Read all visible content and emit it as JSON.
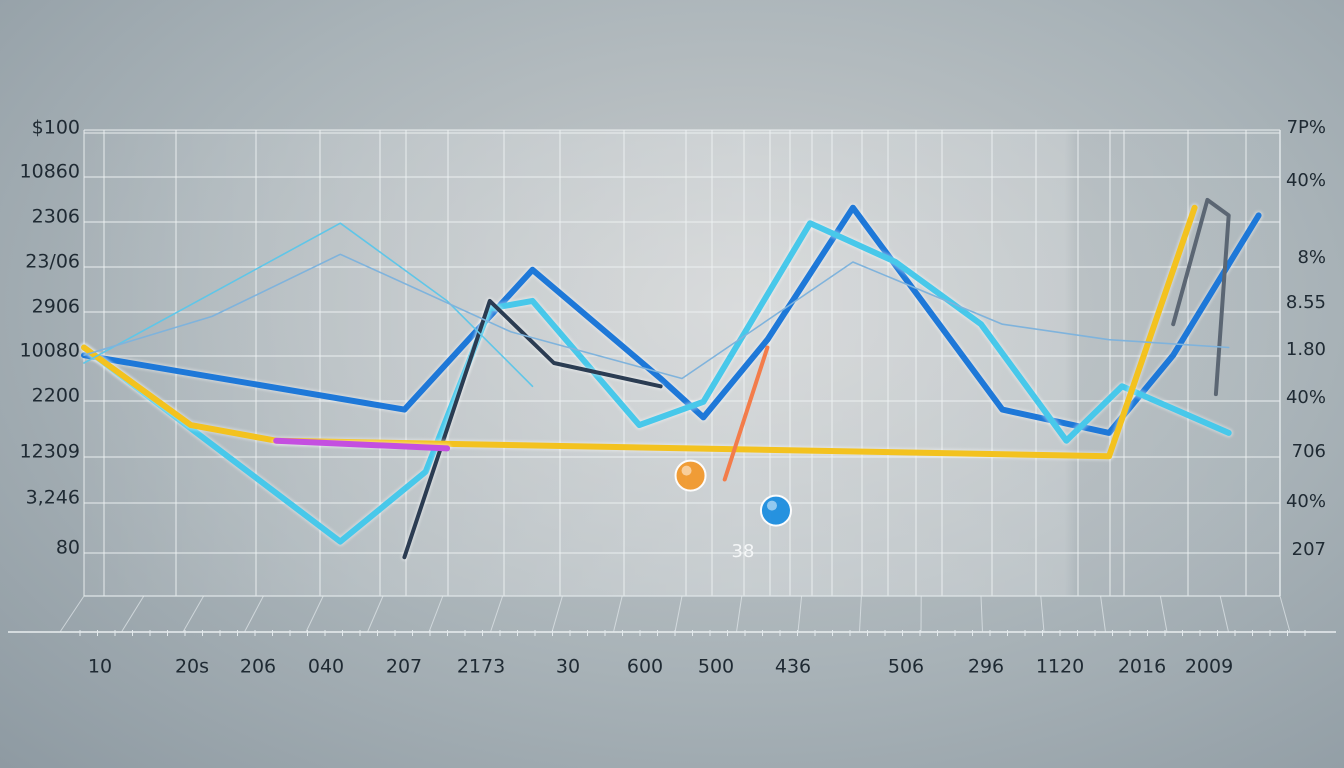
{
  "chart_data": {
    "type": "line",
    "title": "",
    "xlabel": "",
    "ylabel": "",
    "y_left_ticks": [
      "$100",
      "10860",
      "2306",
      "23/06",
      "2906",
      "10080",
      "2200",
      "12309",
      "3,246",
      "80"
    ],
    "y_right_ticks": [
      "7P%",
      "40%",
      "8%",
      "8.55",
      "1.80",
      "40%",
      "706",
      "40%",
      "207"
    ],
    "x_ticks": [
      "10",
      "20s",
      "206",
      "040",
      "207",
      "2173",
      "30",
      "600",
      "500",
      "436",
      "506",
      "296",
      "1120",
      "2016",
      "2009"
    ],
    "grid": true,
    "annotation": "38",
    "series": [
      {
        "color": "#1e78d8",
        "values": [
          [
            0,
            3.1
          ],
          [
            7.5,
            2.4
          ],
          [
            10.5,
            4.2
          ],
          [
            13.5,
            2.8
          ],
          [
            14.5,
            2.3
          ],
          [
            16,
            3.3
          ],
          [
            18,
            5.0
          ],
          [
            21.5,
            2.4
          ],
          [
            24,
            2.1
          ],
          [
            25.5,
            3.1
          ],
          [
            27.5,
            4.9
          ]
        ]
      },
      {
        "color": "#48c8ea",
        "values": [
          [
            0,
            3.2
          ],
          [
            6,
            0.7
          ],
          [
            8,
            1.6
          ],
          [
            9.5,
            3.7
          ],
          [
            10.5,
            3.8
          ],
          [
            13,
            2.2
          ],
          [
            14.5,
            2.5
          ],
          [
            17,
            4.8
          ],
          [
            19,
            4.3
          ],
          [
            21,
            3.5
          ],
          [
            23,
            2.0
          ],
          [
            24.3,
            2.7
          ],
          [
            26.8,
            2.1
          ]
        ]
      },
      {
        "color": "#2b3c52",
        "values": [
          [
            7.5,
            0.5
          ],
          [
            9.5,
            3.8
          ],
          [
            11,
            3.0
          ],
          [
            13.5,
            2.7
          ]
        ]
      },
      {
        "color": "#f3c21f",
        "values": [
          [
            0,
            3.2
          ],
          [
            2.5,
            2.2
          ],
          [
            4.5,
            2.0
          ],
          [
            24,
            1.8
          ],
          [
            25,
            3.4
          ],
          [
            26,
            5.0
          ]
        ]
      },
      {
        "color": "#c44fe0",
        "values": [
          [
            4.5,
            2.0
          ],
          [
            8.5,
            1.9
          ]
        ]
      },
      {
        "color": "#f37c4a",
        "values": [
          [
            15,
            1.5
          ],
          [
            16,
            3.2
          ]
        ]
      },
      {
        "color": "#5b6673",
        "values": [
          [
            25.5,
            3.5
          ],
          [
            26.3,
            5.1
          ],
          [
            26.8,
            4.9
          ],
          [
            26.5,
            2.6
          ]
        ]
      },
      {
        "color": "#5fc6e8",
        "values": [
          [
            0,
            3.0
          ],
          [
            6,
            4.8
          ],
          [
            8.5,
            3.8
          ],
          [
            10.5,
            2.7
          ]
        ]
      },
      {
        "color": "#7fb3dc",
        "values": [
          [
            0,
            3.1
          ],
          [
            3,
            3.6
          ],
          [
            6,
            4.4
          ],
          [
            10,
            3.4
          ],
          [
            14,
            2.8
          ],
          [
            18,
            4.3
          ],
          [
            21.5,
            3.5
          ],
          [
            24,
            3.3
          ],
          [
            26.8,
            3.2
          ]
        ]
      }
    ],
    "markers": [
      {
        "x": 14.2,
        "y": 1.55,
        "color": "#f29a2e"
      },
      {
        "x": 16.2,
        "y": 1.1,
        "color": "#1e8fe0"
      }
    ]
  }
}
